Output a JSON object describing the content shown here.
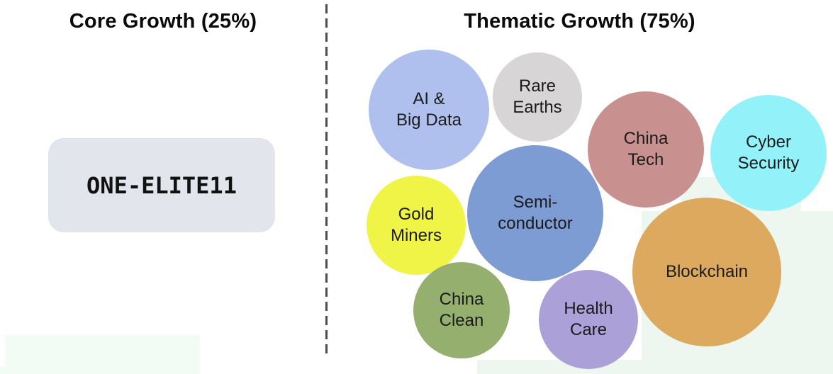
{
  "left_panel": {
    "title": "Core Growth (25%)",
    "box_label": "ONE-ELITE11",
    "box_color": "#e2e6ec"
  },
  "right_panel": {
    "title": "Thematic Growth (75%)",
    "bubbles": [
      {
        "id": "ai-big-data",
        "label": "AI &\nBig Data",
        "color": "#afc0ee"
      },
      {
        "id": "rare-earths",
        "label": "Rare\nEarths",
        "color": "#d7d5d5"
      },
      {
        "id": "china-tech",
        "label": "China\nTech",
        "color": "#c99090"
      },
      {
        "id": "cyber-security",
        "label": "Cyber\nSecurity",
        "color": "#93f2f9"
      },
      {
        "id": "gold-miners",
        "label": "Gold\nMiners",
        "color": "#f0f446"
      },
      {
        "id": "semiconductor",
        "label": "Semi-\nconductor",
        "color": "#7c9cd3"
      },
      {
        "id": "blockchain",
        "label": "Blockchain",
        "color": "#dca95e"
      },
      {
        "id": "china-clean",
        "label": "China\nClean",
        "color": "#94af6e"
      },
      {
        "id": "health-care",
        "label": "Health\nCare",
        "color": "#aba0d8"
      }
    ]
  },
  "divider": {
    "color": "#4b4b4b"
  },
  "background": {
    "tint_right": "#edf7ef",
    "tint_left": "#f3fbf5"
  }
}
